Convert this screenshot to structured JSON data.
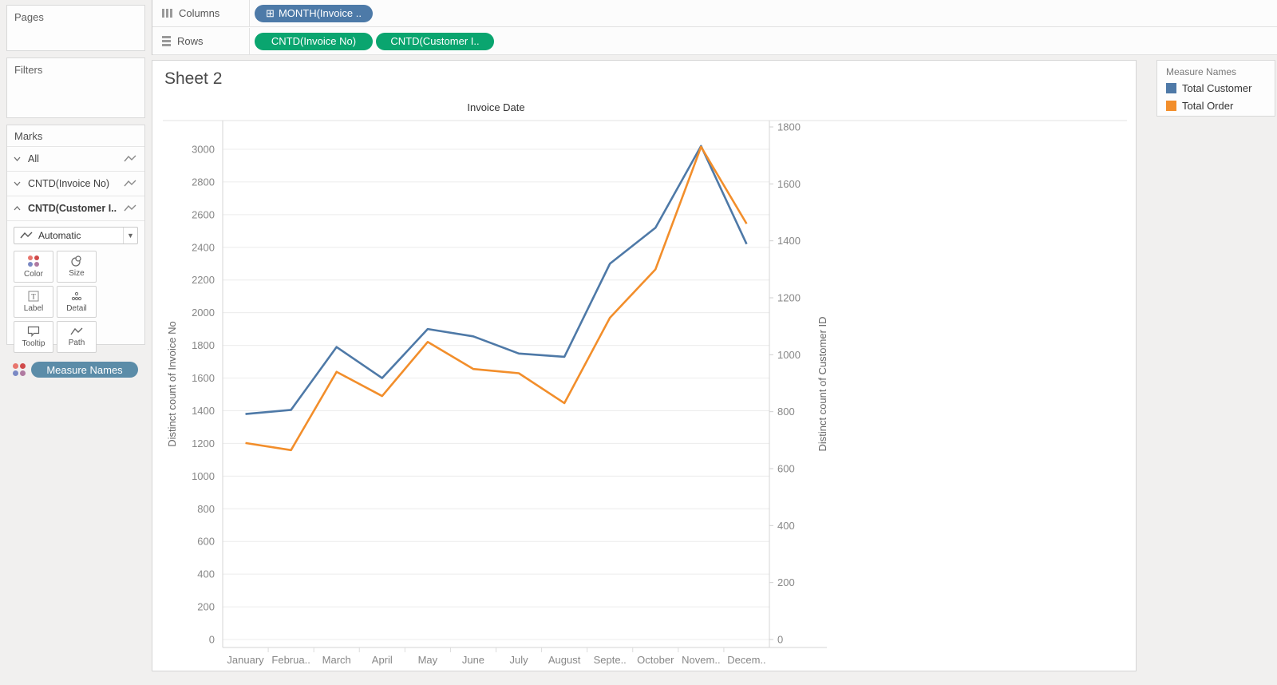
{
  "shelves": {
    "columns_label": "Columns",
    "rows_label": "Rows",
    "columns_pills": [
      {
        "label": "MONTH(Invoice ..",
        "icon": "plus-box",
        "color": "#4d7aa8"
      }
    ],
    "rows_pills": [
      {
        "label": "CNTD(Invoice No)",
        "color": "#0aa56f"
      },
      {
        "label": "CNTD(Customer I..",
        "color": "#0aa56f"
      }
    ]
  },
  "sidebar": {
    "pages_label": "Pages",
    "filters_label": "Filters",
    "marks": {
      "title": "Marks",
      "layers": [
        {
          "label": "All"
        },
        {
          "label": "CNTD(Invoice No)"
        },
        {
          "label": "CNTD(Customer I..."
        }
      ],
      "mark_type_dropdown": "Automatic",
      "buttons": [
        {
          "label": "Color"
        },
        {
          "label": "Size"
        },
        {
          "label": "Label"
        },
        {
          "label": "Detail"
        },
        {
          "label": "Tooltip"
        },
        {
          "label": "Path"
        }
      ],
      "encoding_pill": {
        "label": "Measure Names",
        "color": "#5b8ca8"
      }
    }
  },
  "sheet": {
    "title": "Sheet 2"
  },
  "legend": {
    "title": "Measure Names",
    "entries": [
      {
        "label": "Total Customer",
        "color": "#4e79a7"
      },
      {
        "label": "Total Order",
        "color": "#f28e2b"
      }
    ]
  },
  "chart_data": {
    "type": "line",
    "title": "Invoice Date",
    "categories": [
      "January",
      "Februa..",
      "March",
      "April",
      "May",
      "June",
      "July",
      "August",
      "Septe..",
      "October",
      "Novem..",
      "Decem.."
    ],
    "series": [
      {
        "name": "Total Customer",
        "axis": "left",
        "color": "#4e79a7",
        "values": [
          1380,
          1405,
          1790,
          1600,
          1900,
          1855,
          1750,
          1730,
          2300,
          2520,
          3020,
          2420
        ]
      },
      {
        "name": "Total Order",
        "axis": "right",
        "color": "#f28e2b",
        "values": [
          690,
          665,
          940,
          855,
          1045,
          950,
          935,
          830,
          1130,
          1300,
          1730,
          1460
        ]
      }
    ],
    "left_axis": {
      "title": "Distinct count of Invoice No",
      "min": 0,
      "max": 3000,
      "tick_step": 200
    },
    "right_axis": {
      "title": "Distinct count of Customer ID",
      "min": 0,
      "max": 1800,
      "tick_step": 200
    },
    "grid": "horizontal",
    "legend_position": "right"
  }
}
